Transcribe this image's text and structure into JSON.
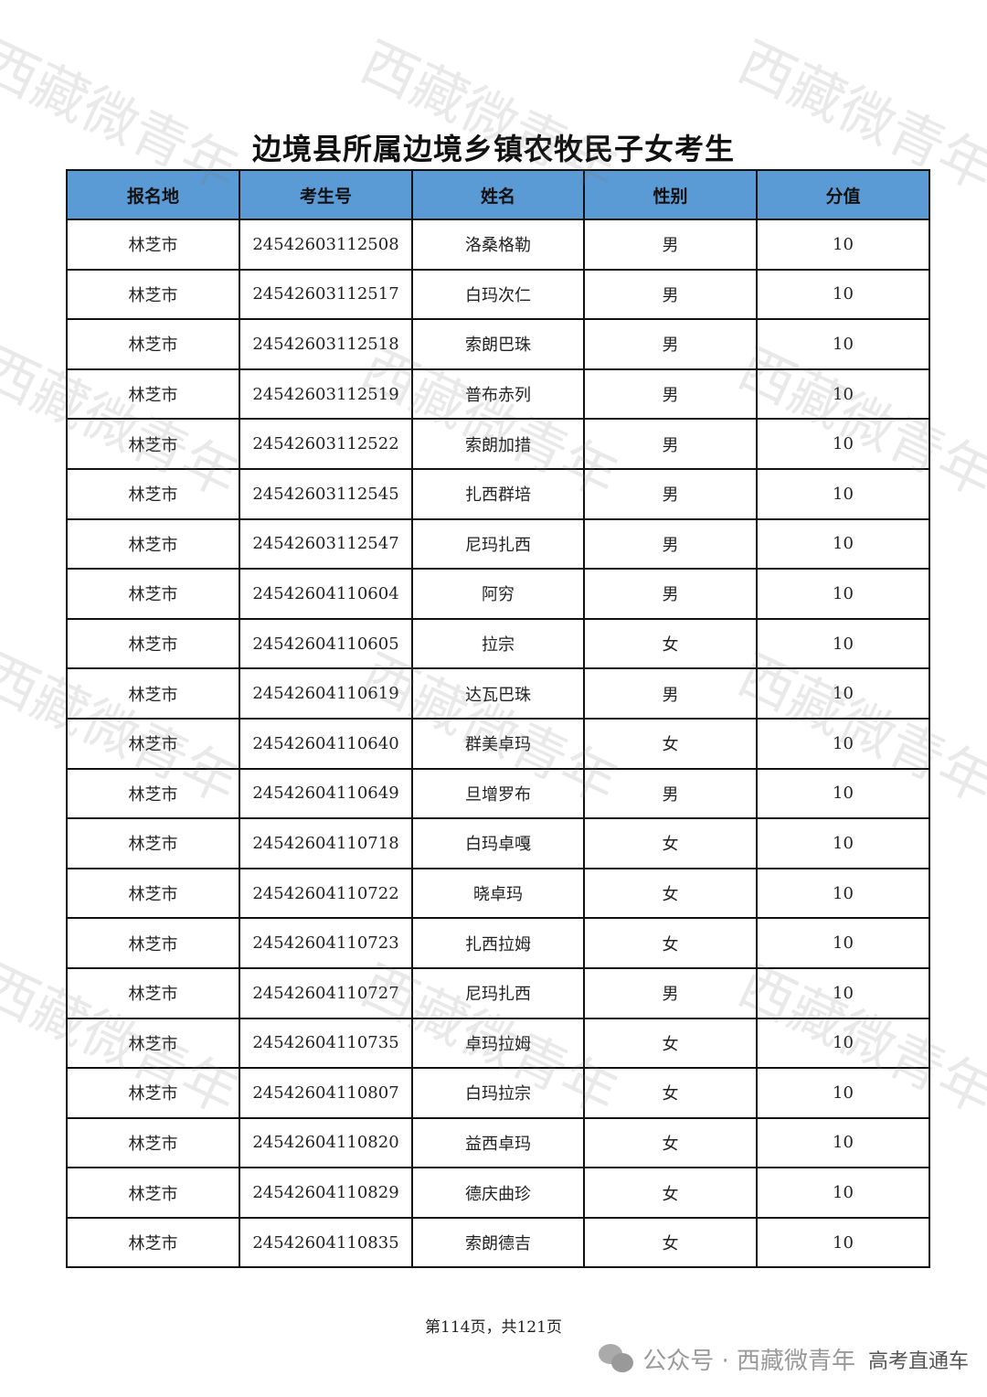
{
  "watermark": "西藏微青年",
  "title": "边境县所属边境乡镇农牧民子女考生",
  "headers": [
    "报名地",
    "考生号",
    "姓名",
    "性别",
    "分值"
  ],
  "rows": [
    [
      "林芝市",
      "24542603112508",
      "洛桑格勒",
      "男",
      "10"
    ],
    [
      "林芝市",
      "24542603112517",
      "白玛次仁",
      "男",
      "10"
    ],
    [
      "林芝市",
      "24542603112518",
      "索朗巴珠",
      "男",
      "10"
    ],
    [
      "林芝市",
      "24542603112519",
      "普布赤列",
      "男",
      "10"
    ],
    [
      "林芝市",
      "24542603112522",
      "索朗加措",
      "男",
      "10"
    ],
    [
      "林芝市",
      "24542603112545",
      "扎西群培",
      "男",
      "10"
    ],
    [
      "林芝市",
      "24542603112547",
      "尼玛扎西",
      "男",
      "10"
    ],
    [
      "林芝市",
      "24542604110604",
      "阿穷",
      "男",
      "10"
    ],
    [
      "林芝市",
      "24542604110605",
      "拉宗",
      "女",
      "10"
    ],
    [
      "林芝市",
      "24542604110619",
      "达瓦巴珠",
      "男",
      "10"
    ],
    [
      "林芝市",
      "24542604110640",
      "群美卓玛",
      "女",
      "10"
    ],
    [
      "林芝市",
      "24542604110649",
      "旦增罗布",
      "男",
      "10"
    ],
    [
      "林芝市",
      "24542604110718",
      "白玛卓嘎",
      "女",
      "10"
    ],
    [
      "林芝市",
      "24542604110722",
      "晓卓玛",
      "女",
      "10"
    ],
    [
      "林芝市",
      "24542604110723",
      "扎西拉姆",
      "女",
      "10"
    ],
    [
      "林芝市",
      "24542604110727",
      "尼玛扎西",
      "男",
      "10"
    ],
    [
      "林芝市",
      "24542604110735",
      "卓玛拉姆",
      "女",
      "10"
    ],
    [
      "林芝市",
      "24542604110807",
      "白玛拉宗",
      "女",
      "10"
    ],
    [
      "林芝市",
      "24542604110820",
      "益西卓玛",
      "女",
      "10"
    ],
    [
      "林芝市",
      "24542604110829",
      "德庆曲珍",
      "女",
      "10"
    ],
    [
      "林芝市",
      "24542604110835",
      "索朗德吉",
      "女",
      "10"
    ]
  ],
  "footer": "第114页，共121页",
  "wechat": {
    "label": "公众号 · 西藏微青年",
    "overlay": "高考直通车"
  }
}
